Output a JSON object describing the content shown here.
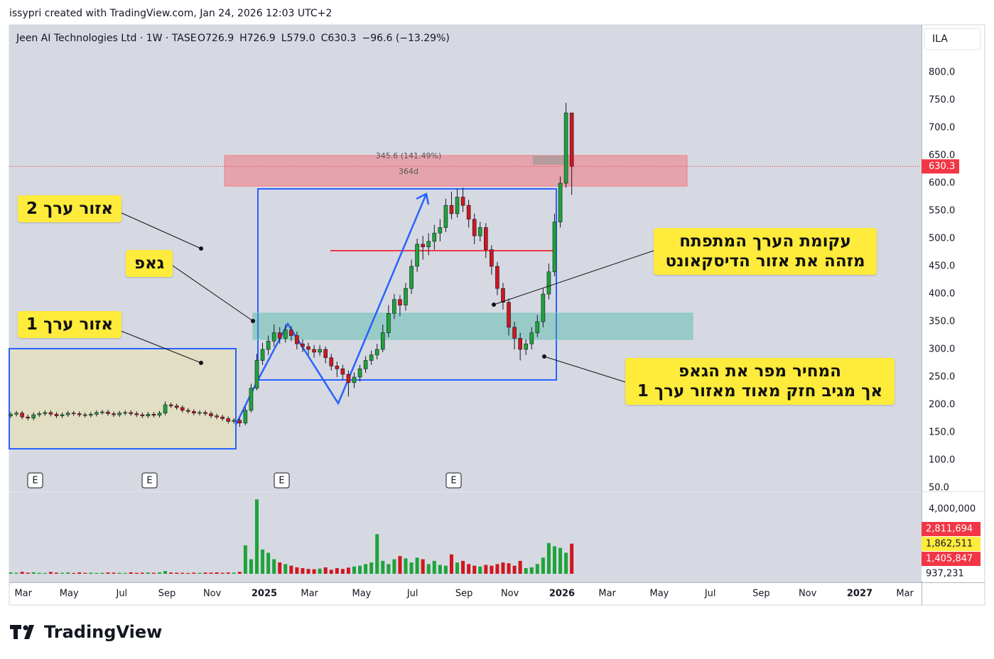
{
  "header": {
    "credit": "issypri created with TradingView.com, Jan 24, 2026 12:03 UTC+2",
    "brand": "TradingView"
  },
  "chart_data": {
    "type": "candlestick",
    "title": "Jeen AI Technologies Ltd · 1W · TASE",
    "legend_items": [
      "O726.9",
      "H726.9",
      "L579.0",
      "C630.3",
      "−96.6 (−13.29%)"
    ],
    "currency": "ILA",
    "up_color": "#1fa33a",
    "down_color": "#d0161f",
    "grid": false,
    "xlim": [
      -0.25,
      159.1
    ],
    "xticks": [
      {
        "value": 2.2,
        "label": "Mar"
      },
      {
        "value": 10.2,
        "label": "May"
      },
      {
        "value": 19.4,
        "label": "Jul"
      },
      {
        "value": 27.3,
        "label": "Sep"
      },
      {
        "value": 35.2,
        "label": "Nov"
      },
      {
        "value": 44.3,
        "label": "2025"
      },
      {
        "value": 52.2,
        "label": "Mar"
      },
      {
        "value": 61.3,
        "label": "May"
      },
      {
        "value": 70.2,
        "label": "Jul"
      },
      {
        "value": 79.2,
        "label": "Sep"
      },
      {
        "value": 87.2,
        "label": "Nov"
      },
      {
        "value": 96.3,
        "label": "2026"
      },
      {
        "value": 104.2,
        "label": "Mar"
      },
      {
        "value": 113.3,
        "label": "May"
      },
      {
        "value": 122.2,
        "label": "Jul"
      },
      {
        "value": 131.1,
        "label": "Sep"
      },
      {
        "value": 139.2,
        "label": "Nov"
      },
      {
        "value": 148.3,
        "label": "2027"
      },
      {
        "value": 156.2,
        "label": "Mar"
      }
    ],
    "ylim": [
      43.6,
      885.9
    ],
    "yticks": [
      {
        "value": 50,
        "label": "50.0"
      },
      {
        "value": 100,
        "label": "100.0"
      },
      {
        "value": 150,
        "label": "150.0"
      },
      {
        "value": 200,
        "label": "200.0"
      },
      {
        "value": 250,
        "label": "250.0"
      },
      {
        "value": 300,
        "label": "300.0"
      },
      {
        "value": 350,
        "label": "350.0"
      },
      {
        "value": 400,
        "label": "400.0"
      },
      {
        "value": 450,
        "label": "450.0"
      },
      {
        "value": 500,
        "label": "500.0"
      },
      {
        "value": 550,
        "label": "550.0"
      },
      {
        "value": 600,
        "label": "600.0"
      },
      {
        "value": 650,
        "label": "650.0"
      },
      {
        "value": 700,
        "label": "700.0"
      },
      {
        "value": 750,
        "label": "750.0"
      },
      {
        "value": 800,
        "label": "800.0"
      }
    ],
    "ohlc": [
      [
        180,
        187,
        176,
        183
      ],
      [
        183,
        189,
        179,
        185
      ],
      [
        185,
        189,
        174,
        178
      ],
      [
        178,
        182,
        172,
        176
      ],
      [
        176,
        186,
        172,
        182
      ],
      [
        182,
        188,
        178,
        184
      ],
      [
        184,
        190,
        180,
        186
      ],
      [
        186,
        190,
        179,
        183
      ],
      [
        183,
        187,
        176,
        180
      ],
      [
        180,
        186,
        176,
        182
      ],
      [
        182,
        189,
        178,
        185
      ],
      [
        185,
        189,
        180,
        184
      ],
      [
        184,
        188,
        178,
        182
      ],
      [
        182,
        186,
        177,
        181
      ],
      [
        181,
        187,
        177,
        183
      ],
      [
        183,
        190,
        179,
        186
      ],
      [
        186,
        191,
        182,
        187
      ],
      [
        187,
        191,
        180,
        184
      ],
      [
        184,
        188,
        178,
        182
      ],
      [
        182,
        189,
        178,
        185
      ],
      [
        185,
        190,
        181,
        186
      ],
      [
        186,
        190,
        180,
        184
      ],
      [
        184,
        188,
        178,
        182
      ],
      [
        182,
        186,
        176,
        180
      ],
      [
        180,
        187,
        176,
        183
      ],
      [
        183,
        187,
        177,
        181
      ],
      [
        181,
        189,
        177,
        185
      ],
      [
        185,
        206,
        181,
        200
      ],
      [
        200,
        204,
        194,
        198
      ],
      [
        198,
        202,
        191,
        195
      ],
      [
        195,
        199,
        186,
        190
      ],
      [
        190,
        194,
        184,
        188
      ],
      [
        188,
        192,
        181,
        185
      ],
      [
        185,
        190,
        181,
        186
      ],
      [
        186,
        190,
        180,
        184
      ],
      [
        184,
        188,
        176,
        180
      ],
      [
        180,
        184,
        174,
        178
      ],
      [
        178,
        182,
        171,
        175
      ],
      [
        175,
        179,
        166,
        170
      ],
      [
        170,
        176,
        166,
        172
      ],
      [
        172,
        176,
        160,
        167
      ],
      [
        167,
        196,
        163,
        190
      ],
      [
        190,
        238,
        186,
        230
      ],
      [
        230,
        292,
        226,
        280
      ],
      [
        280,
        312,
        272,
        300
      ],
      [
        300,
        325,
        290,
        315
      ],
      [
        315,
        345,
        305,
        330
      ],
      [
        330,
        340,
        310,
        320
      ],
      [
        320,
        345,
        312,
        335
      ],
      [
        335,
        342,
        315,
        325
      ],
      [
        325,
        332,
        300,
        310
      ],
      [
        310,
        318,
        295,
        305
      ],
      [
        305,
        312,
        290,
        300
      ],
      [
        300,
        308,
        285,
        295
      ],
      [
        295,
        308,
        288,
        300
      ],
      [
        300,
        305,
        275,
        285
      ],
      [
        285,
        292,
        262,
        270
      ],
      [
        270,
        278,
        250,
        265
      ],
      [
        265,
        272,
        245,
        255
      ],
      [
        255,
        262,
        215,
        240
      ],
      [
        240,
        258,
        230,
        250
      ],
      [
        250,
        272,
        242,
        265
      ],
      [
        265,
        288,
        258,
        280
      ],
      [
        280,
        298,
        272,
        290
      ],
      [
        290,
        310,
        282,
        300
      ],
      [
        300,
        345,
        295,
        330
      ],
      [
        330,
        380,
        322,
        365
      ],
      [
        365,
        400,
        355,
        390
      ],
      [
        390,
        398,
        360,
        380
      ],
      [
        380,
        420,
        370,
        410
      ],
      [
        410,
        462,
        400,
        450
      ],
      [
        450,
        500,
        440,
        490
      ],
      [
        490,
        505,
        462,
        485
      ],
      [
        485,
        510,
        470,
        495
      ],
      [
        495,
        525,
        480,
        510
      ],
      [
        510,
        535,
        495,
        520
      ],
      [
        520,
        572,
        512,
        560
      ],
      [
        560,
        585,
        535,
        545
      ],
      [
        545,
        590,
        538,
        575
      ],
      [
        575,
        592,
        548,
        560
      ],
      [
        560,
        570,
        520,
        535
      ],
      [
        535,
        545,
        490,
        505
      ],
      [
        505,
        530,
        495,
        520
      ],
      [
        520,
        528,
        465,
        480
      ],
      [
        480,
        488,
        435,
        450
      ],
      [
        450,
        458,
        398,
        410
      ],
      [
        410,
        420,
        372,
        385
      ],
      [
        385,
        392,
        325,
        340
      ],
      [
        340,
        350,
        300,
        320
      ],
      [
        320,
        330,
        280,
        300
      ],
      [
        300,
        318,
        290,
        310
      ],
      [
        310,
        340,
        300,
        330
      ],
      [
        330,
        362,
        322,
        350
      ],
      [
        350,
        410,
        340,
        400
      ],
      [
        400,
        455,
        390,
        440
      ],
      [
        440,
        545,
        432,
        530
      ],
      [
        530,
        612,
        520,
        600
      ],
      [
        600,
        745,
        592,
        726.9
      ],
      [
        726.9,
        726.9,
        579.0,
        630.3
      ]
    ],
    "volume": [
      80000,
      60000,
      120000,
      70000,
      90000,
      60000,
      50000,
      110000,
      70000,
      60000,
      80000,
      50000,
      90000,
      60000,
      70000,
      50000,
      60000,
      80000,
      70000,
      60000,
      50000,
      90000,
      60000,
      70000,
      80000,
      60000,
      90000,
      170000,
      80000,
      70000,
      60000,
      50000,
      70000,
      60000,
      80000,
      70000,
      90000,
      60000,
      80000,
      70000,
      120000,
      1760000,
      900000,
      4600000,
      1500000,
      1300000,
      900000,
      700000,
      600000,
      500000,
      400000,
      350000,
      300000,
      280000,
      320000,
      400000,
      250000,
      350000,
      300000,
      380000,
      450000,
      500000,
      600000,
      700000,
      2450000,
      800000,
      600000,
      900000,
      1100000,
      950000,
      700000,
      1000000,
      900000,
      600000,
      800000,
      550000,
      500000,
      1200000,
      700000,
      800000,
      600000,
      500000,
      450000,
      550000,
      500000,
      600000,
      700000,
      650000,
      500000,
      800000,
      350000,
      400000,
      600000,
      1000000,
      1900000,
      1700000,
      1600000,
      1300000,
      1862511
    ],
    "volume_ylim": [
      0,
      5050000
    ],
    "volume_yticks": [
      {
        "value": 4000000,
        "label": "4,000,000"
      }
    ],
    "volume_scale_labels": [
      {
        "value": 2811694,
        "label": "2,811,694",
        "color": "#f23645"
      },
      {
        "value": 1862511,
        "label": "1,862,511",
        "color": "#ffeb3b"
      },
      {
        "value": 1405847,
        "label": "1,405,847",
        "color": "#f23645"
      },
      {
        "value": 937231,
        "label": "937,231",
        "color": "#ffffff"
      }
    ],
    "measure": [
      "345.6 (141.49%)",
      "364d"
    ],
    "earnings": [
      "E",
      "E",
      "E",
      "E"
    ],
    "annotations": [
      [
        "אזור ערך 2"
      ],
      [
        "גאפ"
      ],
      [
        "אזור ערך 1"
      ],
      [
        "עקומת הערך המתפתח",
        "מזהה את אזור הדיסקאונט"
      ],
      [
        "המחיר מפר את הגאפ",
        "אך מגיב חזק מאוד מאזור ערך 1"
      ]
    ]
  }
}
